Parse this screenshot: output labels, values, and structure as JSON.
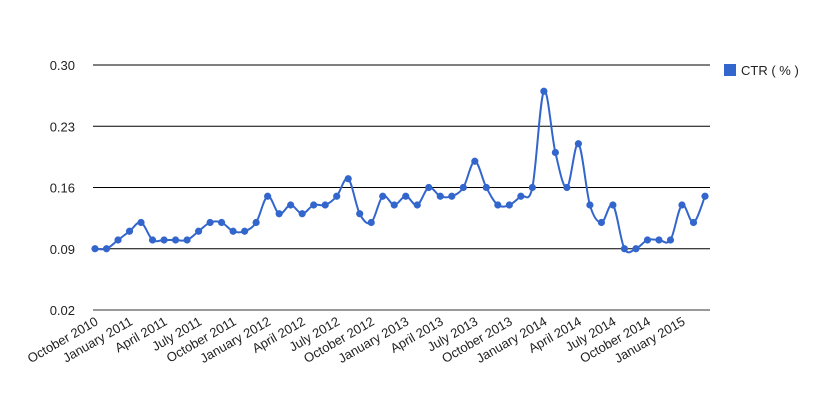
{
  "chart_data": {
    "type": "line",
    "series": [
      {
        "name": "CTR ( % )",
        "color": "#3366cc",
        "values": [
          0.09,
          0.09,
          0.1,
          0.11,
          0.12,
          0.1,
          0.1,
          0.1,
          0.1,
          0.11,
          0.12,
          0.12,
          0.11,
          0.11,
          0.12,
          0.15,
          0.13,
          0.14,
          0.13,
          0.14,
          0.14,
          0.15,
          0.17,
          0.13,
          0.12,
          0.15,
          0.14,
          0.15,
          0.14,
          0.16,
          0.15,
          0.15,
          0.16,
          0.19,
          0.16,
          0.14,
          0.14,
          0.15,
          0.16,
          0.27,
          0.2,
          0.16,
          0.21,
          0.14,
          0.12,
          0.14,
          0.09,
          0.09,
          0.1,
          0.1,
          0.1,
          0.14,
          0.12,
          0.15
        ]
      }
    ],
    "x_start": "October 2010",
    "x_tick_labels": [
      "October 2010",
      "January 2011",
      "April 2011",
      "July 2011",
      "October 2011",
      "January 2012",
      "April 2012",
      "July 2012",
      "October 2012",
      "January 2013",
      "April 2013",
      "July 2013",
      "October 2013",
      "January 2014",
      "April 2014",
      "July 2014",
      "October 2014",
      "January 2015"
    ],
    "y_ticks": [
      "0.30",
      "0.23",
      "0.16",
      "0.09",
      "0.02"
    ],
    "ylim": [
      0.02,
      0.3
    ],
    "grid": true,
    "legend_position": "right",
    "title": "",
    "xlabel": "",
    "ylabel": ""
  }
}
